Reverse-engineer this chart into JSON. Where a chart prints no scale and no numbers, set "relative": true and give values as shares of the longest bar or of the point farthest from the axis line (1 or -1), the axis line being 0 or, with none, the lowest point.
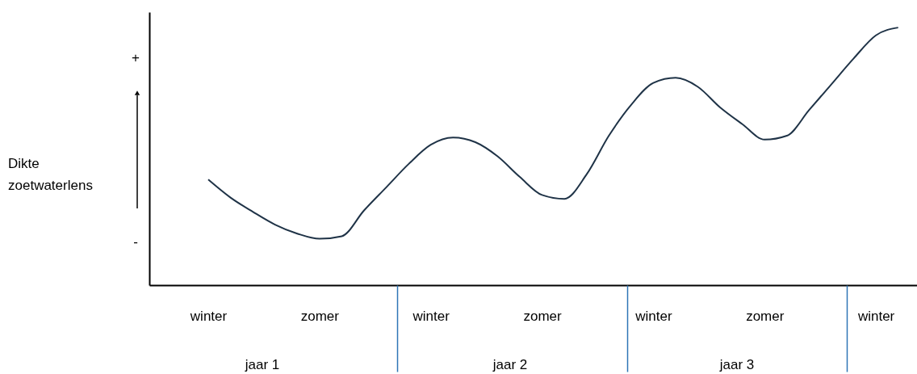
{
  "chart_data": {
    "type": "line",
    "relative": true,
    "categories": [
      "winter",
      null,
      null,
      null,
      null,
      "zomer",
      null,
      null,
      null,
      null,
      "winter",
      null,
      null,
      null,
      null,
      "zomer",
      null,
      null,
      null,
      null,
      "winter",
      null,
      null,
      null,
      null,
      "zomer",
      null,
      null,
      null,
      null,
      "winter",
      null
    ],
    "series": [
      {
        "color": "#1f3347",
        "values": [
          0.41,
          0.34,
          0.285,
          0.235,
          0.2,
          0.18,
          0.19,
          0.29,
          0.38,
          0.47,
          0.545,
          0.573,
          0.555,
          0.5,
          0.42,
          0.35,
          0.335,
          0.43,
          0.58,
          0.7,
          0.785,
          0.805,
          0.77,
          0.69,
          0.625,
          0.565,
          0.58,
          0.68,
          0.78,
          0.88,
          0.97,
          1.0
        ]
      }
    ],
    "annotations": [
      "+",
      "-",
      "Dikte zoetwaterlens",
      "jaar 1",
      "jaar 2",
      "jaar 3"
    ],
    "grid": false,
    "marker": "none",
    "line_style": "solid"
  }
}
